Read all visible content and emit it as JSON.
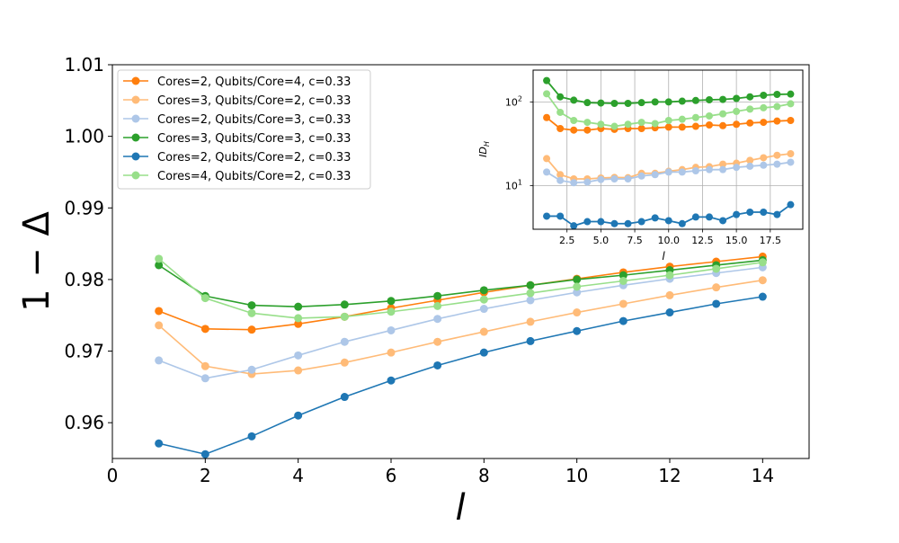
{
  "chart_data": [
    {
      "type": "line",
      "title": "",
      "xlabel": "l",
      "ylabel": "1 − Δ",
      "xlim": [
        0,
        15
      ],
      "ylim": [
        0.955,
        1.01
      ],
      "xticks": [
        0,
        2,
        4,
        6,
        8,
        10,
        12,
        14
      ],
      "xtick_labels": [
        "0",
        "2",
        "4",
        "6",
        "8",
        "10",
        "12",
        "14"
      ],
      "yticks": [
        0.96,
        0.97,
        0.98,
        0.99,
        1.0,
        1.01
      ],
      "ytick_labels": [
        "0.96",
        "0.97",
        "0.98",
        "0.99",
        "1.00",
        "1.01"
      ],
      "grid": false,
      "legend_position": "top-left",
      "x": [
        1,
        2,
        3,
        4,
        5,
        6,
        7,
        8,
        9,
        10,
        11,
        12,
        13,
        14
      ],
      "series": [
        {
          "name": "Cores=2, Qubits/Core=4, c=0.33",
          "color": "#ff7f0e",
          "values": [
            0.9756,
            0.9731,
            0.973,
            0.9738,
            0.9748,
            0.976,
            0.9771,
            0.9782,
            0.9792,
            0.9801,
            0.981,
            0.9818,
            0.9825,
            0.9832
          ]
        },
        {
          "name": "Cores=3, Qubits/Core=2, c=0.33",
          "color": "#ffbb78",
          "values": [
            0.9736,
            0.9679,
            0.9668,
            0.9673,
            0.9684,
            0.9698,
            0.9713,
            0.9727,
            0.9741,
            0.9754,
            0.9766,
            0.9778,
            0.9789,
            0.9799
          ]
        },
        {
          "name": "Cores=2, Qubits/Core=3, c=0.33",
          "color": "#aec7e8",
          "values": [
            0.9687,
            0.9662,
            0.9674,
            0.9694,
            0.9713,
            0.9729,
            0.9745,
            0.9759,
            0.9771,
            0.9782,
            0.9792,
            0.9801,
            0.9809,
            0.9817
          ]
        },
        {
          "name": "Cores=3, Qubits/Core=3, c=0.33",
          "color": "#2ca02c",
          "values": [
            0.982,
            0.9777,
            0.9764,
            0.9762,
            0.9765,
            0.977,
            0.9777,
            0.9785,
            0.9792,
            0.98,
            0.9806,
            0.9813,
            0.982,
            0.9827
          ]
        },
        {
          "name": "Cores=2, Qubits/Core=2, c=0.33",
          "color": "#1f77b4",
          "values": [
            0.9571,
            0.9556,
            0.9581,
            0.961,
            0.9636,
            0.9659,
            0.968,
            0.9698,
            0.9714,
            0.9728,
            0.9742,
            0.9754,
            0.9766,
            0.9776
          ]
        },
        {
          "name": "Cores=4, Qubits/Core=2, c=0.33",
          "color": "#98df8a",
          "values": [
            0.9829,
            0.9774,
            0.9753,
            0.9746,
            0.9748,
            0.9755,
            0.9763,
            0.9772,
            0.9781,
            0.979,
            0.9798,
            0.9806,
            0.9815,
            0.9824
          ]
        }
      ]
    },
    {
      "type": "line",
      "title": "",
      "xlabel": "l",
      "ylabel": "ID_H",
      "yscale": "log",
      "xlim": [
        0,
        19.9
      ],
      "ylim": [
        3,
        240
      ],
      "xticks": [
        2.5,
        5.0,
        7.5,
        10.0,
        12.5,
        15.0,
        17.5
      ],
      "xtick_labels": [
        "2.5",
        "5.0",
        "7.5",
        "10.0",
        "12.5",
        "15.0",
        "17.5"
      ],
      "yticks": [
        10,
        100
      ],
      "ytick_base": "10",
      "ytick_exponents": [
        "1",
        "2"
      ],
      "grid": true,
      "x": [
        1,
        2,
        3,
        4,
        5,
        6,
        7,
        8,
        9,
        10,
        11,
        12,
        13,
        14,
        15,
        16,
        17,
        18,
        19
      ],
      "series": [
        {
          "name": "Cores=2, Qubits/Core=4, c=0.33",
          "color": "#ff7f0e",
          "values": [
            65,
            48,
            46,
            46,
            48,
            47,
            48,
            48,
            49,
            50,
            50,
            51,
            53,
            52,
            54,
            56,
            57,
            59,
            60
          ]
        },
        {
          "name": "Cores=3, Qubits/Core=2, c=0.33",
          "color": "#ffbb78",
          "values": [
            21,
            13.5,
            12,
            12,
            12.3,
            12.5,
            12.4,
            14,
            14,
            14.8,
            15.5,
            16.5,
            16.8,
            18,
            18.5,
            20,
            21.5,
            23,
            24
          ]
        },
        {
          "name": "Cores=2, Qubits/Core=3, c=0.33",
          "color": "#aec7e8",
          "values": [
            14.5,
            11.5,
            10.8,
            11,
            11.8,
            12,
            12,
            13,
            13.5,
            14.5,
            14.5,
            15,
            15.5,
            15.5,
            16.5,
            17,
            17.5,
            18,
            19
          ]
        },
        {
          "name": "Cores=3, Qubits/Core=3, c=0.33",
          "color": "#2ca02c",
          "values": [
            180,
            115,
            105,
            98,
            97,
            96,
            96,
            98,
            100,
            100,
            102,
            104,
            106,
            107,
            110,
            115,
            120,
            123,
            124
          ]
        },
        {
          "name": "Cores=2, Qubits/Core=2, c=0.33",
          "color": "#1f77b4",
          "values": [
            4.3,
            4.3,
            3.3,
            3.7,
            3.7,
            3.5,
            3.5,
            3.7,
            4.1,
            3.8,
            3.5,
            4.2,
            4.2,
            3.8,
            4.5,
            4.8,
            4.8,
            4.5,
            5.9
          ]
        },
        {
          "name": "Cores=4, Qubits/Core=2, c=0.33",
          "color": "#98df8a",
          "values": [
            125,
            75,
            60,
            57,
            54,
            51,
            54,
            57,
            55,
            60,
            62,
            65,
            68,
            72,
            77,
            82,
            85,
            88,
            95
          ]
        }
      ]
    }
  ]
}
